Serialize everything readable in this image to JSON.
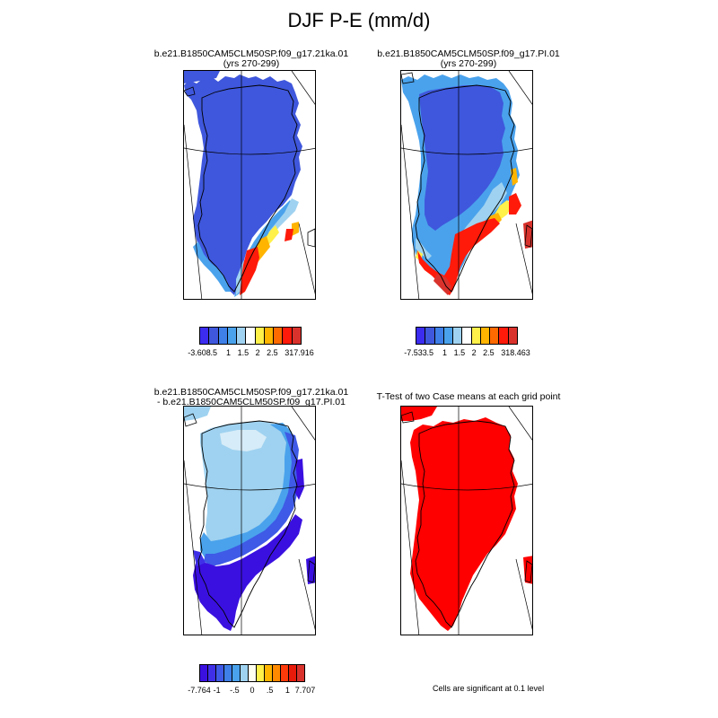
{
  "title": "DJF P-E (mm/d)",
  "panels": [
    {
      "title_line1": "b.e21.B1850CAM5CLM50SP.f09_g17.21ka.01",
      "title_line2": "(yrs 270-299)",
      "colorbar": {
        "colors": [
          "#3b2cf0",
          "#3f57dc",
          "#3e7fe8",
          "#4aa2ec",
          "#9fd2f0",
          "#ffffff",
          "#fff04a",
          "#ffb400",
          "#ff6a00",
          "#ff1a0a",
          "#d9322c"
        ],
        "labels": [
          "-3.608",
          ".5",
          "1",
          "1.5",
          "2",
          "2.5",
          "3",
          "17.916"
        ]
      }
    },
    {
      "title_line1": "b.e21.B1850CAM5CLM50SP.f09_g17.PI.01",
      "title_line2": "(yrs 270-299)",
      "colorbar": {
        "colors": [
          "#3b2cf0",
          "#3f57dc",
          "#3e7fe8",
          "#4aa2ec",
          "#9fd2f0",
          "#ffffff",
          "#fff04a",
          "#ffb400",
          "#ff6a00",
          "#ff1a0a",
          "#d9322c"
        ],
        "labels": [
          "-7.533",
          ".5",
          "1",
          "1.5",
          "2",
          "2.5",
          "3",
          "18.463"
        ]
      }
    },
    {
      "title_line1": "b.e21.B1850CAM5CLM50SP.f09_g17.21ka.01",
      "title_line2": "- b.e21.B1850CAM5CLM50SP.f09_g17.PI.01",
      "colorbar": {
        "colors": [
          "#3a10e0",
          "#3f30e8",
          "#3e5ae6",
          "#3e7fe8",
          "#4aa2ec",
          "#9fd2f0",
          "#fffff0",
          "#fff04a",
          "#ffb400",
          "#ff8a00",
          "#ff3a0a",
          "#e81a0a",
          "#d9322c"
        ],
        "labels": [
          "-7.764",
          "-1",
          "-.5",
          "0",
          ".5",
          "1",
          "7.707"
        ]
      }
    },
    {
      "title_line1": "T-Test of two Case means at each grid point",
      "title_line2": "",
      "footer": "Cells are significant at 0.1 level"
    }
  ],
  "colors": {
    "ice_blue": "#3f57dc",
    "light_blue": "#9fd2f0",
    "mid_blue": "#4aa2ec",
    "deep_blue": "#3a10e0",
    "red": "#ff0000",
    "orange": "#ffb400",
    "yellow": "#fff04a"
  }
}
